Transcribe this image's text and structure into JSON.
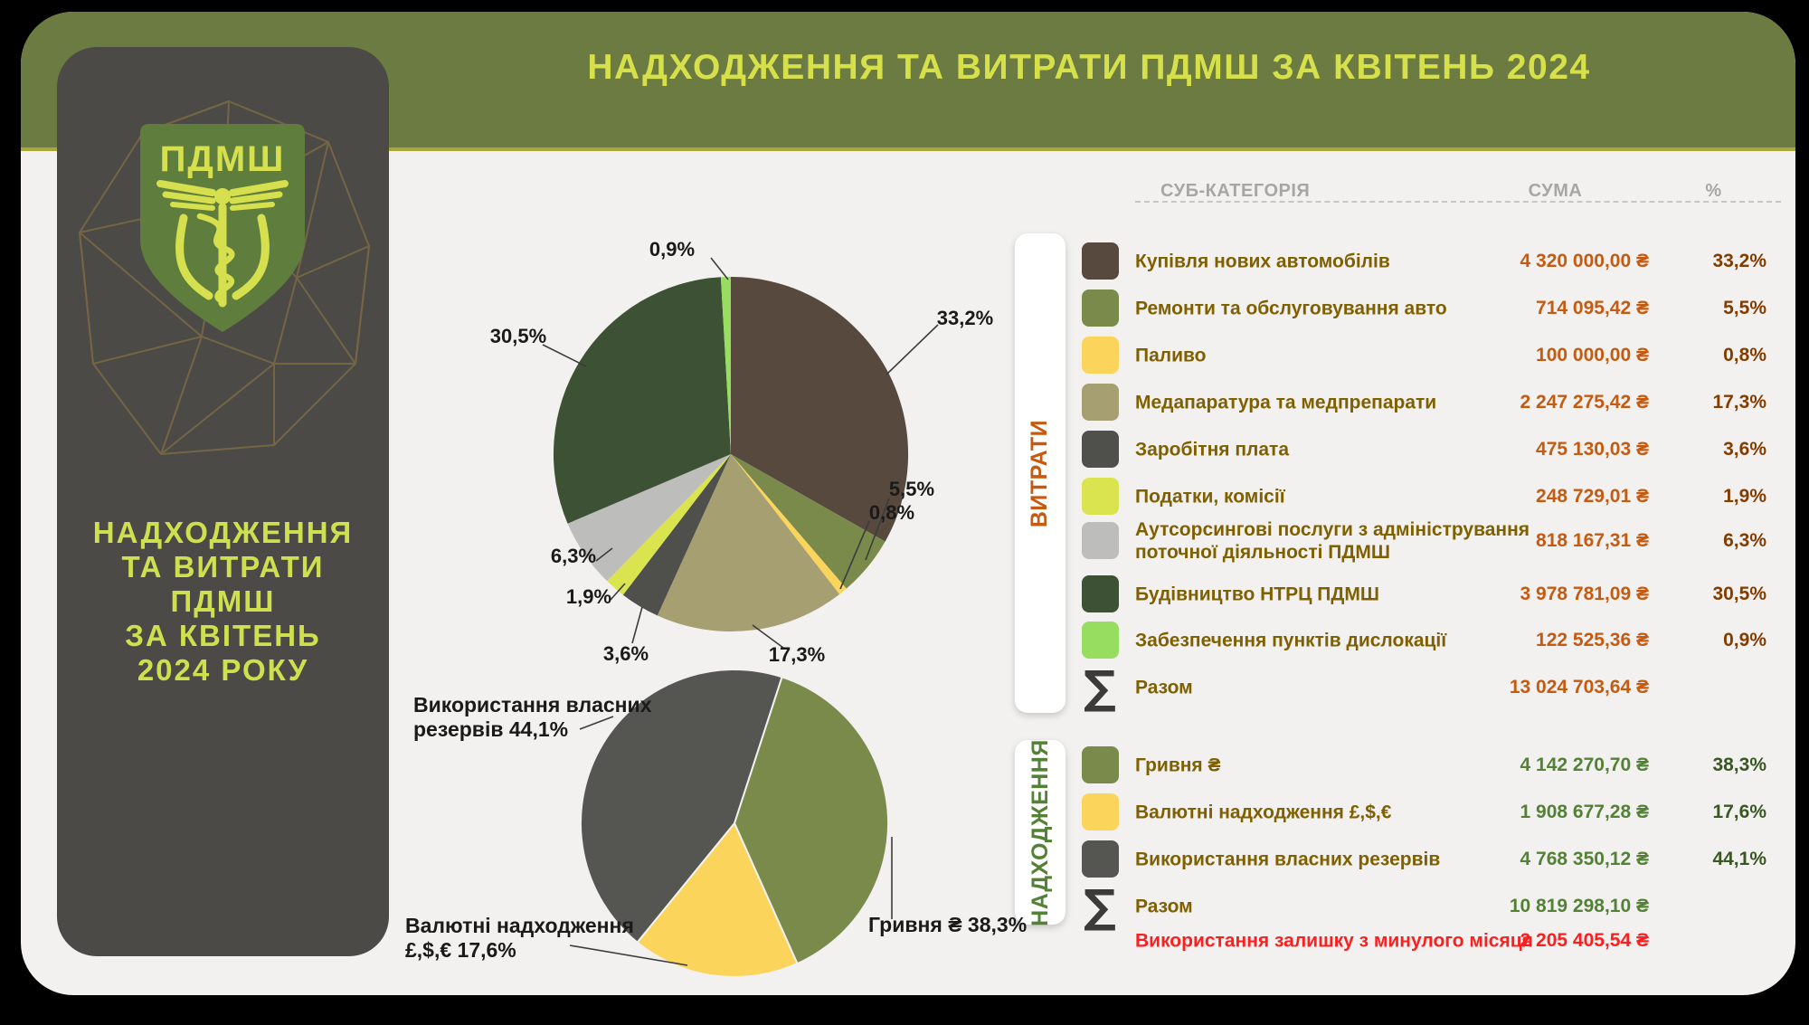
{
  "header": {
    "title": "НАДХОДЖЕННЯ ТА ВИТРАТИ ПДМШ ЗА КВІТЕНЬ 2024",
    "band_color": "#6b7b41",
    "title_color": "#d6e04b"
  },
  "sidebar": {
    "logo_text": "ПДМШ",
    "title_lines": [
      "НАДХОДЖЕННЯ",
      "ТА ВИТРАТИ",
      "ПДМШ",
      "ЗА КВІТЕНЬ",
      "2024 РОКУ"
    ]
  },
  "table": {
    "headers": {
      "category": "СУБ-КАТЕГОРІЯ",
      "amount": "СУМА",
      "percent": "%"
    },
    "sections": [
      {
        "label": "ВИТРАТИ",
        "label_color": "#c55a11",
        "amount_color": "#c55a11",
        "percent_color": "#833c00",
        "rows": [
          {
            "label": "Купівля нових автомобілів",
            "amount": "4 320 000,00 ₴",
            "percent": "33,2%",
            "color": "#57493d"
          },
          {
            "label": "Ремонти та обслуговування авто",
            "amount": "714 095,42 ₴",
            "percent": "5,5%",
            "color": "#7a8a4b"
          },
          {
            "label": "Паливо",
            "amount": "100 000,00 ₴",
            "percent": "0,8%",
            "color": "#fbd45c"
          },
          {
            "label": "Медапаратура та медпрепарати",
            "amount": "2 247 275,42 ₴",
            "percent": "17,3%",
            "color": "#a69f72"
          },
          {
            "label": "Заробітня плата",
            "amount": "475 130,03 ₴",
            "percent": "3,6%",
            "color": "#4f4f4b"
          },
          {
            "label": "Податки, комісії",
            "amount": "248 729,01 ₴",
            "percent": "1,9%",
            "color": "#d9e44f"
          },
          {
            "label": "Аутсорсингові послуги з адміністрування",
            "label2": "поточної діяльності ПДМШ",
            "amount": "818 167,31 ₴",
            "percent": "6,3%",
            "color": "#bdbdbb"
          },
          {
            "label": "Будівництво НТРЦ ПДМШ",
            "amount": "3 978 781,09 ₴",
            "percent": "30,5%",
            "color": "#3d5134"
          },
          {
            "label": "Забезпечення пунктів дислокації",
            "amount": "122 525,36 ₴",
            "percent": "0,9%",
            "color": "#97dd5f"
          }
        ],
        "total": {
          "sigma": "∑",
          "label": "Разом",
          "amount": "13 024 703,64 ₴"
        }
      },
      {
        "label": "НАДХОДЖЕННЯ",
        "label_color": "#538135",
        "amount_color": "#538135",
        "percent_color": "#385723",
        "rows": [
          {
            "label": "Гривня ₴",
            "amount": "4 142 270,70 ₴",
            "percent": "38,3%",
            "color": "#7a8a4b"
          },
          {
            "label": "Валютні надходження £,$,€",
            "amount": "1 908 677,28 ₴",
            "percent": "17,6%",
            "color": "#fbd45c"
          },
          {
            "label": "Використання власних резервів",
            "amount": "4 768 350,12 ₴",
            "percent": "44,1%",
            "color": "#555551"
          }
        ],
        "total": {
          "sigma": "∑",
          "label": "Разом",
          "amount": "10 819 298,10 ₴"
        },
        "extra": {
          "label": "Використання залишку з минулого місяця",
          "amount": "2 205 405,54 ₴",
          "color": "#fb1f1f"
        }
      }
    ]
  },
  "chart_data": [
    {
      "type": "pie",
      "name": "expenses_pie",
      "start_angle_deg": 0,
      "legend_position": "right-table",
      "slices": [
        {
          "label": "Купівля нових автомобілів",
          "value": 33.2,
          "display": "33,2%",
          "color": "#57493d"
        },
        {
          "label": "Ремонти та обслуговування авто",
          "value": 5.5,
          "display": "5,5%",
          "color": "#7a8a4b"
        },
        {
          "label": "Паливо",
          "value": 0.8,
          "display": "0,8%",
          "color": "#fbd45c"
        },
        {
          "label": "Медапаратура та медпрепарати",
          "value": 17.3,
          "display": "17,3%",
          "color": "#a69f72"
        },
        {
          "label": "Заробітня плата",
          "value": 3.6,
          "display": "3,6%",
          "color": "#4f4f4b"
        },
        {
          "label": "Податки, комісії",
          "value": 1.9,
          "display": "1,9%",
          "color": "#d9e44f"
        },
        {
          "label": "Аутсорсингові послуги з адміністрування поточної діяльності ПДМШ",
          "value": 6.3,
          "display": "6,3%",
          "color": "#bdbdbb"
        },
        {
          "label": "Будівництво НТРЦ ПДМШ",
          "value": 30.5,
          "display": "30,5%",
          "color": "#3d5134"
        },
        {
          "label": "Забезпечення пунктів дислокації",
          "value": 0.9,
          "display": "0,9%",
          "color": "#97dd5f"
        }
      ]
    },
    {
      "type": "pie",
      "name": "income_pie",
      "start_angle_deg": 18,
      "slices": [
        {
          "label": "Гривня ₴",
          "value": 38.3,
          "display": "Гривня ₴ 38,3%",
          "color": "#7a8a4b"
        },
        {
          "label": "Валютні надходження £,$,€",
          "value": 17.6,
          "callout_lines": [
            "Валютні надходження",
            "£,$,€ 17,6%"
          ],
          "color": "#fbd45c"
        },
        {
          "label": "Використання власних резервів",
          "value": 44.1,
          "callout_lines": [
            "Використання власних",
            "резервів  44,1%"
          ],
          "color": "#555551"
        }
      ]
    }
  ]
}
